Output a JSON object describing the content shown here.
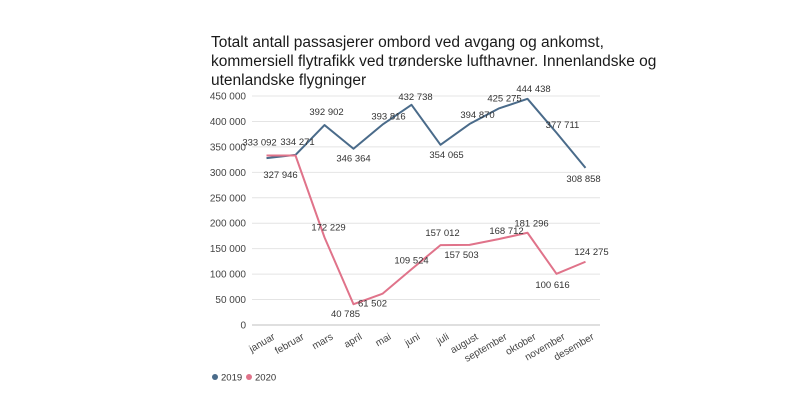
{
  "chart_data": {
    "type": "line",
    "title_lines": [
      "Totalt antall passasjerer ombord ved avgang og ankomst,",
      "kommersiell flytrafikk ved trønderske lufthavner. Innenlandske og",
      "utenlandske flygninger"
    ],
    "categories": [
      "januar",
      "februar",
      "mars",
      "april",
      "mai",
      "juni",
      "juli",
      "august",
      "september",
      "oktober",
      "november",
      "desember"
    ],
    "series": [
      {
        "name": "2019",
        "color": "#4a6b8a",
        "values": [
          327946,
          334271,
          392902,
          346364,
          393816,
          432738,
          354065,
          394870,
          425275,
          444438,
          377711,
          308858
        ],
        "labels": [
          "327 946",
          "334 271",
          "392 902",
          "346 364",
          "393 816",
          "432 738",
          "354 065",
          "394 870",
          "425 275",
          "444 438",
          "377 711",
          "308 858"
        ]
      },
      {
        "name": "2020",
        "color": "#e0738a",
        "values": [
          333092,
          333092,
          172229,
          40785,
          61502,
          109524,
          157012,
          157503,
          168712,
          181296,
          100616,
          124275
        ],
        "labels": [
          "333 092",
          "",
          "172 229",
          "40 785",
          "61 502",
          "109 524",
          "157 012",
          "157 503",
          "168 712",
          "181 296",
          "100 616",
          "124 275"
        ]
      }
    ],
    "y_ticks": [
      0,
      50000,
      100000,
      150000,
      200000,
      250000,
      300000,
      350000,
      400000,
      450000
    ],
    "y_tick_labels": [
      "0",
      "50 000",
      "100 000",
      "150 000",
      "200 000",
      "250 000",
      "300 000",
      "350 000",
      "400 000",
      "450 000"
    ],
    "ylim": [
      0,
      450000
    ],
    "grid": true,
    "legend_position": "bottom-left"
  }
}
